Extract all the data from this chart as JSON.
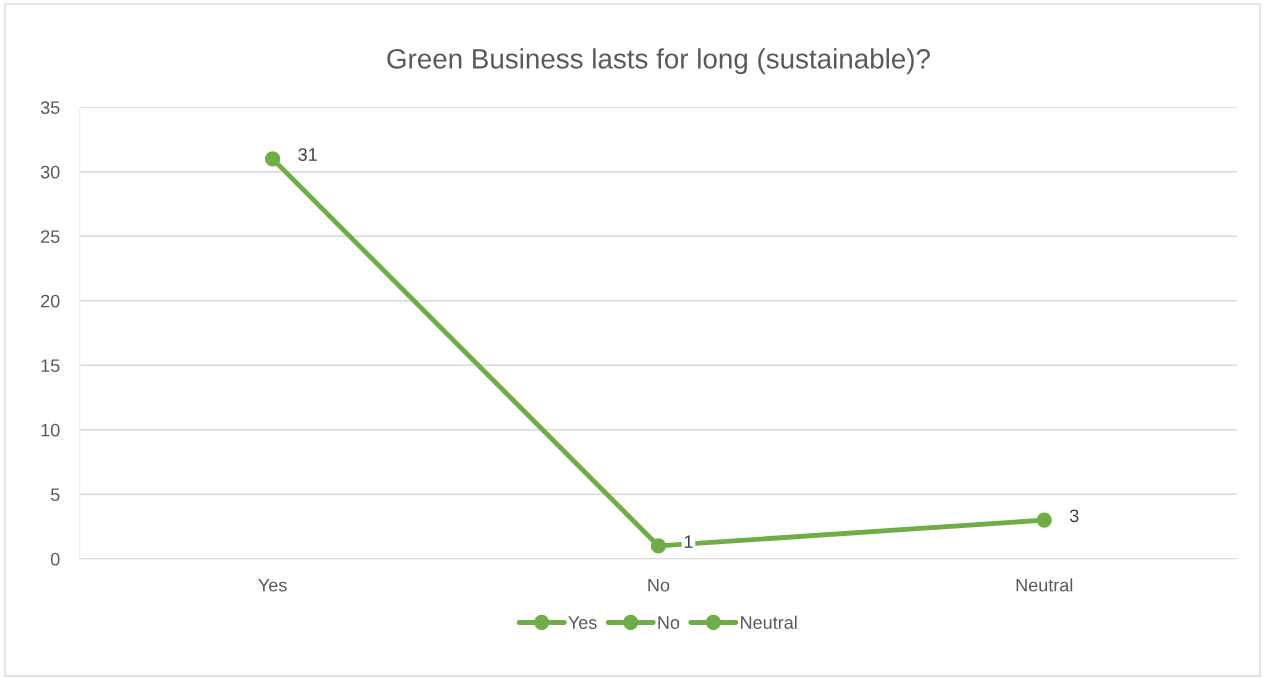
{
  "chart_data": {
    "type": "line",
    "title": "Green Business lasts for long (sustainable)?",
    "categories": [
      "Yes",
      "No",
      "Neutral"
    ],
    "series": [
      {
        "color": "#70ad47",
        "values": [
          31,
          1,
          3
        ]
      }
    ],
    "ylim": [
      0,
      35
    ],
    "yticks": [
      0,
      5,
      10,
      15,
      20,
      25,
      30,
      35
    ],
    "grid": "y",
    "marker": "circle",
    "line_style": "solid",
    "data_labels": true
  }
}
